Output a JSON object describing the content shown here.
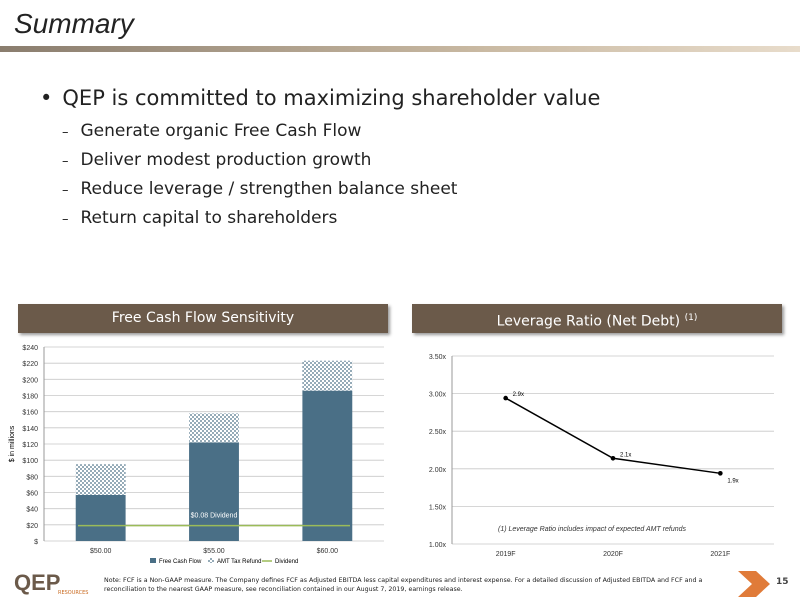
{
  "header": {
    "title": "Summary"
  },
  "bullets": {
    "main": "QEP is committed to maximizing shareholder value",
    "items": [
      "Generate organic Free Cash Flow",
      "Deliver modest production growth",
      "Reduce leverage / strengthen balance sheet",
      "Return capital to shareholders"
    ]
  },
  "panels": [
    {
      "title": "Free Cash Flow Sensitivity"
    },
    {
      "title": "Leverage Ratio (Net Debt)",
      "title_note": "(1)"
    }
  ],
  "chart_data": [
    {
      "type": "bar",
      "stacked": true,
      "y_label": "$ in millions",
      "categories": [
        "$50.00",
        "$55.00",
        "$60.00"
      ],
      "series": [
        {
          "name": "Free Cash Flow",
          "color": "#4a6f86",
          "values": [
            57,
            122,
            186
          ]
        },
        {
          "name": "AMT Tax Refund",
          "color": "#b9c9d6",
          "pattern": true,
          "values": [
            38,
            36,
            37
          ]
        }
      ],
      "dividend": {
        "name": "Dividend",
        "label": "$0.08 Dividend",
        "value": 19,
        "color": "#9bbb59"
      },
      "ylim": [
        0,
        240
      ],
      "yticks": [
        {
          "value": 0,
          "label": "$"
        },
        {
          "value": 20,
          "label": "$20"
        },
        {
          "value": 40,
          "label": "$40"
        },
        {
          "value": 60,
          "label": "$60"
        },
        {
          "value": 80,
          "label": "$80"
        },
        {
          "value": 100,
          "label": "$100"
        },
        {
          "value": 120,
          "label": "$120"
        },
        {
          "value": 140,
          "label": "$140"
        },
        {
          "value": 160,
          "label": "$160"
        },
        {
          "value": 180,
          "label": "$180"
        },
        {
          "value": 200,
          "label": "$200"
        },
        {
          "value": 220,
          "label": "$220"
        },
        {
          "value": 240,
          "label": "$240"
        }
      ],
      "grid": true
    },
    {
      "type": "line",
      "categories": [
        "2019F",
        "2020F",
        "2021F"
      ],
      "values": [
        2.94,
        2.14,
        1.94
      ],
      "value_labels": [
        "2.9x",
        "2.1x",
        "1.9x"
      ],
      "color": "#000000",
      "ylim": [
        1,
        3.5
      ],
      "yticks": [
        {
          "value": 1,
          "label": "1.00x"
        },
        {
          "value": 1.5,
          "label": "1.50x"
        },
        {
          "value": 2,
          "label": "2.00x"
        },
        {
          "value": 2.5,
          "label": "2.50x"
        },
        {
          "value": 3,
          "label": "3.00x"
        },
        {
          "value": 3.5,
          "label": "3.50x"
        }
      ],
      "annotation": "(1) Leverage Ratio includes impact of expected AMT refunds",
      "grid": true
    }
  ],
  "footer": {
    "logo": "QEP",
    "logo_sub": "RESOURCES",
    "note": "Note: FCF is a Non-GAAP measure. The Company defines FCF as Adjusted EBITDA less capital expenditures and interest expense. For a detailed discussion of Adjusted EBITDA and FCF and a reconciliation to the nearest GAAP measure, see reconciliation contained in our August 7, 2019, earnings release.",
    "page": "15"
  }
}
